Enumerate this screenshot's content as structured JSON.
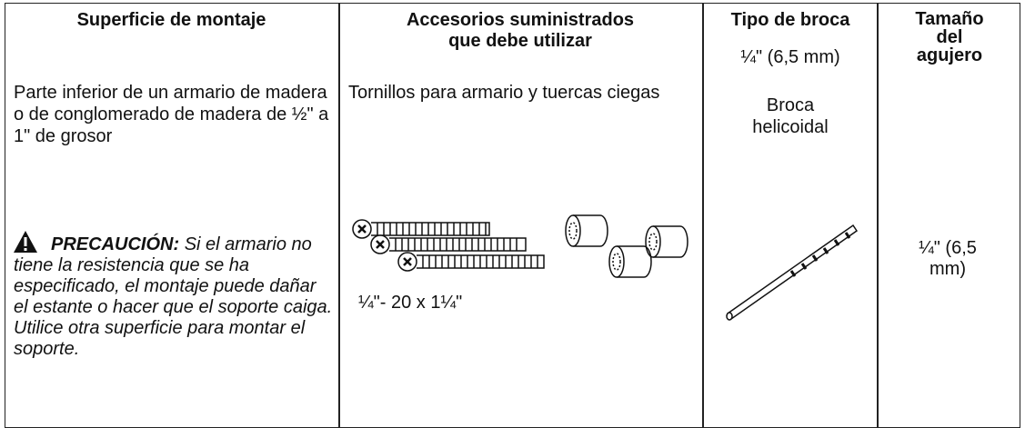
{
  "table": {
    "headers": [
      "Superficie de montaje",
      "Accesorios suministrados que debe utilizar",
      "Tipo de broca",
      "Tamaño del agujero"
    ],
    "rows": [
      {
        "surface": "Parte inferior de un armario de madera o de conglomerado de madera de ½\"  a 1\"  de grosor",
        "caution_label": "PRECAUCIÓN:",
        "caution_text": "Si el armario no tiene la resistencia que se ha especificado, el montaje puede dañar el estante o hacer que el soporte caiga. Utilice otra superficie para montar el soporte.",
        "accessories": "Tornillos para armario y tuercas ciegas",
        "screw_size": "¼\"- 20 x 1¼\"",
        "bit_size": "¼\"  (6,5 mm)",
        "bit_type": "Broca helicoidal",
        "hole_size": "¼\" (6,5 mm)"
      }
    ]
  }
}
